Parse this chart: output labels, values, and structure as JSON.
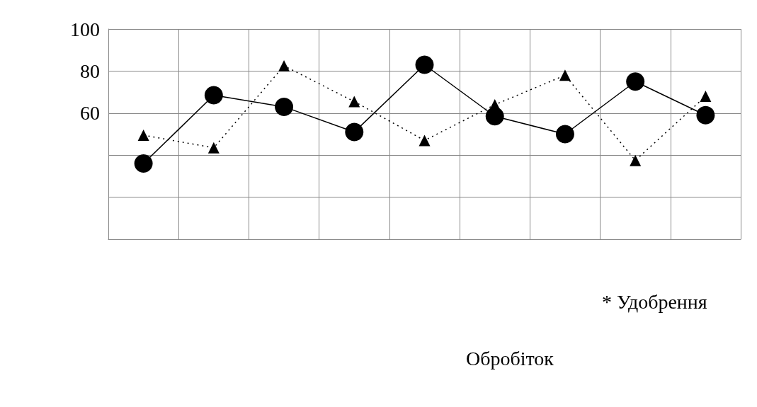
{
  "chart_data": {
    "type": "line",
    "annotations": [
      "* Удобрення",
      "Обробіток"
    ],
    "categories": [
      null,
      null,
      null,
      null,
      null,
      null,
      null,
      null,
      null
    ],
    "series": [
      {
        "color": "#000000",
        "marker": "circle",
        "line_style": "solid",
        "values": [
          36,
          68.5,
          63,
          51,
          83,
          58.5,
          50,
          75,
          59
        ]
      },
      {
        "color": "#000000",
        "marker": "triangle",
        "line_style": "dotted",
        "values": [
          49.5,
          43.5,
          82.5,
          65.5,
          47,
          64,
          78,
          37.5,
          68
        ]
      }
    ],
    "ylim": [
      0,
      100
    ],
    "yticks": [
      {
        "value": 0,
        "label": null
      },
      {
        "value": 20,
        "label": null
      },
      {
        "value": 40,
        "label": null
      },
      60,
      80,
      100
    ],
    "grid": true
  }
}
